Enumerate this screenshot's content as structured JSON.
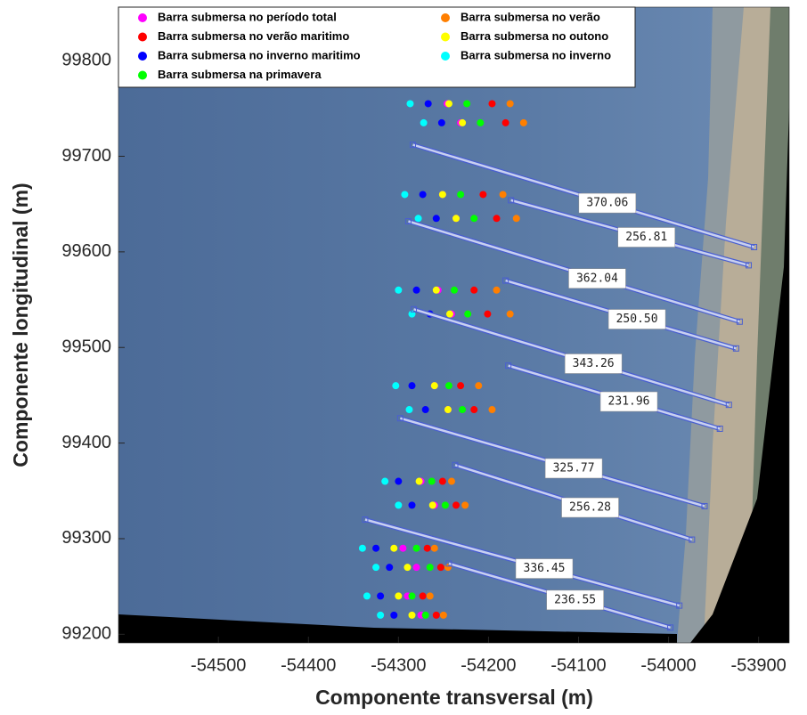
{
  "chart_data": {
    "type": "scatter",
    "x_label": "Componente transversal (m)",
    "y_label": "Componente longitudinal (m)",
    "xlim": [
      -54611,
      -53866
    ],
    "ylim": [
      99191,
      99856
    ],
    "xticks": [
      -54500,
      -54400,
      -54300,
      -54200,
      -54100,
      -54000,
      -53900
    ],
    "yticks": [
      99200,
      99300,
      99400,
      99500,
      99600,
      99700,
      99800
    ],
    "legend_position": "north",
    "legend_columns": 2,
    "series": [
      {
        "name": "Barra submersa no período total",
        "color": "#ff00ff",
        "x": [
          -54246,
          -54231,
          -54251,
          -54236,
          -54256,
          -54241,
          -54260,
          -54245,
          -54275,
          -54260,
          -54295,
          -54280,
          -54290,
          -54275
        ],
        "y": [
          99755,
          99735,
          99660,
          99635,
          99560,
          99535,
          99460,
          99435,
          99360,
          99335,
          99290,
          99270,
          99240,
          99220
        ]
      },
      {
        "name": "Barra submersa no verão",
        "color": "#ff7f00",
        "x": [
          -54176,
          -54161,
          -54184,
          -54169,
          -54191,
          -54176,
          -54211,
          -54196,
          -54241,
          -54226,
          -54260,
          -54245,
          -54265,
          -54250
        ],
        "y": [
          99755,
          99735,
          99660,
          99635,
          99560,
          99535,
          99460,
          99435,
          99360,
          99335,
          99290,
          99270,
          99240,
          99220
        ]
      },
      {
        "name": "Barra submersa no verão maritimo",
        "color": "#ff0000",
        "x": [
          -54196,
          -54181,
          -54206,
          -54191,
          -54216,
          -54201,
          -54231,
          -54216,
          -54251,
          -54236,
          -54268,
          -54253,
          -54273,
          -54258
        ],
        "y": [
          99755,
          99735,
          99660,
          99635,
          99560,
          99535,
          99460,
          99435,
          99360,
          99335,
          99290,
          99270,
          99240,
          99220
        ]
      },
      {
        "name": "Barra submersa no outono",
        "color": "#ffff00",
        "x": [
          -54244,
          -54229,
          -54251,
          -54236,
          -54258,
          -54243,
          -54260,
          -54245,
          -54277,
          -54262,
          -54305,
          -54290,
          -54300,
          -54285
        ],
        "y": [
          99755,
          99735,
          99660,
          99635,
          99560,
          99535,
          99460,
          99435,
          99360,
          99335,
          99290,
          99270,
          99240,
          99220
        ]
      },
      {
        "name": "Barra submersa no inverno maritimo",
        "color": "#0000ff",
        "x": [
          -54267,
          -54252,
          -54273,
          -54258,
          -54280,
          -54265,
          -54285,
          -54270,
          -54300,
          -54285,
          -54325,
          -54310,
          -54320,
          -54305
        ],
        "y": [
          99755,
          99735,
          99660,
          99635,
          99560,
          99535,
          99460,
          99435,
          99360,
          99335,
          99290,
          99270,
          99240,
          99220
        ]
      },
      {
        "name": "Barra submersa no inverno",
        "color": "#00ffff",
        "x": [
          -54287,
          -54272,
          -54293,
          -54278,
          -54300,
          -54285,
          -54303,
          -54288,
          -54315,
          -54300,
          -54340,
          -54325,
          -54335,
          -54320
        ],
        "y": [
          99755,
          99735,
          99660,
          99635,
          99560,
          99535,
          99460,
          99435,
          99360,
          99335,
          99290,
          99270,
          99240,
          99220
        ]
      },
      {
        "name": "Barra submersa na primavera",
        "color": "#00ff00",
        "x": [
          -54224,
          -54209,
          -54231,
          -54216,
          -54238,
          -54223,
          -54244,
          -54229,
          -54263,
          -54248,
          -54280,
          -54265,
          -54285,
          -54270
        ],
        "y": [
          99755,
          99735,
          99660,
          99635,
          99560,
          99535,
          99460,
          99435,
          99360,
          99335,
          99290,
          99270,
          99240,
          99220
        ]
      }
    ],
    "annotations": [
      {
        "label": "370.06",
        "x": [
          -54284,
          -53905
        ],
        "y": [
          99712,
          99605
        ]
      },
      {
        "label": "256.81",
        "x": [
          -54175,
          -53911
        ],
        "y": [
          99654,
          99586
        ]
      },
      {
        "label": "362.04",
        "x": [
          -54289,
          -53921
        ],
        "y": [
          99632,
          99527
        ]
      },
      {
        "label": "250.50",
        "x": [
          -54181,
          -53925
        ],
        "y": [
          99570,
          99499
        ]
      },
      {
        "label": "343.26",
        "x": [
          -54283,
          -53933
        ],
        "y": [
          99540,
          99440
        ]
      },
      {
        "label": "231.96",
        "x": [
          -54178,
          -53943
        ],
        "y": [
          99481,
          99415
        ]
      },
      {
        "label": "325.77",
        "x": [
          -54298,
          -53960
        ],
        "y": [
          99426,
          99334
        ]
      },
      {
        "label": "256.28",
        "x": [
          -54237,
          -53974
        ],
        "y": [
          99377,
          99299
        ]
      },
      {
        "label": "336.45",
        "x": [
          -54337,
          -53988
        ],
        "y": [
          99320,
          99230
        ]
      },
      {
        "label": "236.55",
        "x": [
          -54244,
          -53998
        ],
        "y": [
          99274,
          99207
        ]
      }
    ]
  }
}
